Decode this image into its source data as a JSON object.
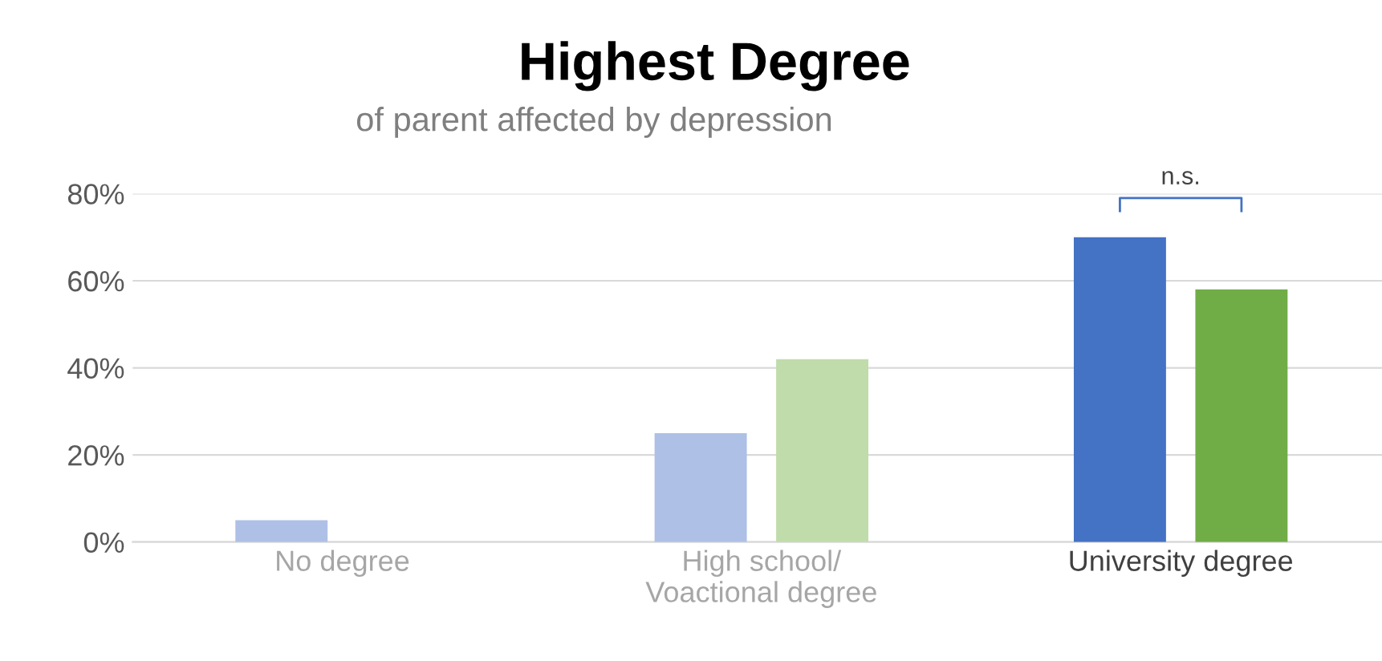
{
  "chart_data": {
    "type": "bar",
    "title": "Highest Degree",
    "subtitle": "of parent affected by depression",
    "categories": [
      "No degree",
      "High school/\nVoactional degree",
      "University degree"
    ],
    "series": [
      {
        "colors": [
          "#aec0e6",
          "#aec0e6",
          "#4472c4"
        ],
        "values": [
          5,
          25,
          70
        ]
      },
      {
        "colors": [
          "#c0dcaa",
          "#c0dcaa",
          "#70ad47"
        ],
        "values": [
          null,
          42,
          58
        ]
      }
    ],
    "ylim": [
      0,
      80
    ],
    "yticks": [
      {
        "value": 0,
        "label": "0%"
      },
      {
        "value": 20,
        "label": "20%"
      },
      {
        "value": 40,
        "label": "40%"
      },
      {
        "value": 60,
        "label": "60%"
      },
      {
        "value": 80,
        "label": "80%"
      }
    ],
    "grid": "y",
    "annotations": [
      "n.s."
    ]
  }
}
